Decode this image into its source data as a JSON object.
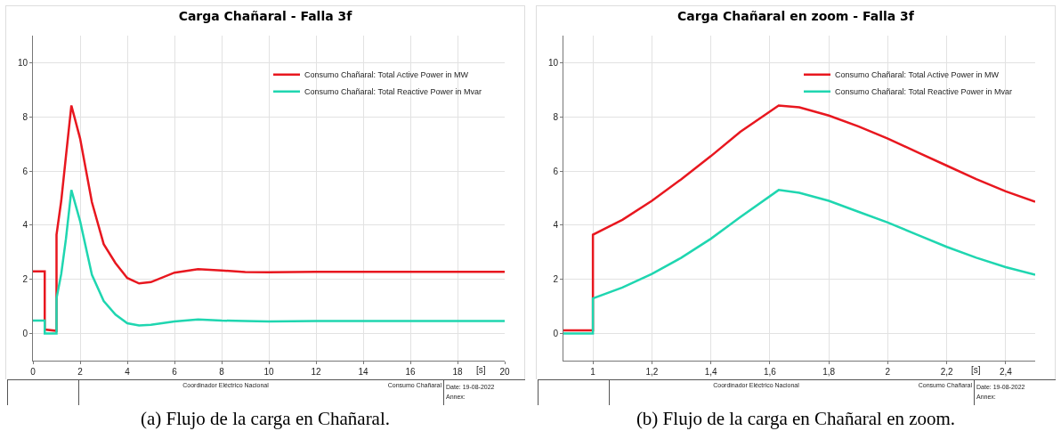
{
  "chart_data": [
    {
      "type": "line",
      "title": "Carga Chañaral - Falla 3f",
      "xlabel": "[s]",
      "legend": "top right",
      "grid": true,
      "marker": "none",
      "line_style": "solid",
      "xlim": [
        0,
        20
      ],
      "xticks": [
        0,
        2,
        4,
        6,
        8,
        10,
        12,
        14,
        16,
        18,
        20
      ],
      "ylim": [
        -1,
        11
      ],
      "yticks": [
        0,
        2,
        4,
        6,
        8,
        10
      ],
      "series": [
        {
          "name": "Consumo Chañaral: Total Active Power in MW",
          "color": "#e8171f",
          "x": [
            0,
            0.5,
            0.5,
            1,
            1,
            1.2,
            1.4,
            1.63,
            2,
            2.5,
            3,
            3.5,
            4,
            4.5,
            5,
            6,
            7,
            8,
            9,
            10,
            12,
            14,
            16,
            18,
            20
          ],
          "values": [
            2.3,
            2.3,
            0.15,
            0.1,
            3.65,
            4.9,
            6.55,
            8.42,
            7.2,
            4.85,
            3.3,
            2.6,
            2.05,
            1.85,
            1.9,
            2.25,
            2.38,
            2.33,
            2.27,
            2.26,
            2.28,
            2.28,
            2.28,
            2.28,
            2.28
          ]
        },
        {
          "name": "Consumo Chañaral: Total Reactive Power in Mvar",
          "color": "#1fd6b0",
          "x": [
            0,
            0.5,
            0.5,
            1,
            1,
            1.2,
            1.4,
            1.63,
            2,
            2.5,
            3,
            3.5,
            4,
            4.5,
            5,
            6,
            7,
            8,
            9,
            10,
            12,
            14,
            16,
            18,
            20
          ],
          "values": [
            0.48,
            0.48,
            0,
            0,
            1.3,
            2.2,
            3.5,
            5.3,
            4.15,
            2.17,
            1.2,
            0.7,
            0.38,
            0.3,
            0.32,
            0.45,
            0.52,
            0.48,
            0.46,
            0.45,
            0.46,
            0.46,
            0.46,
            0.46,
            0.46
          ]
        }
      ],
      "annotations": [
        "Coordinador Eléctrico Nacional",
        "Consumo Chañaral",
        "Date: 19-08-2022",
        "Annex:",
        "(a) Flujo de la carga en Chañaral."
      ]
    },
    {
      "type": "line",
      "title": "Carga Chañaral en zoom - Falla 3f",
      "xlabel": "[s]",
      "legend": "top right",
      "grid": true,
      "marker": "none",
      "line_style": "solid",
      "xlim": [
        0.9,
        2.5
      ],
      "xticks": [
        {
          "value": 1,
          "label": "1"
        },
        {
          "value": 1.2,
          "label": "1,2"
        },
        {
          "value": 1.4,
          "label": "1,4"
        },
        {
          "value": 1.6,
          "label": "1,6"
        },
        {
          "value": 1.8,
          "label": "1,8"
        },
        {
          "value": 2,
          "label": "2"
        },
        {
          "value": 2.2,
          "label": "2,2"
        },
        {
          "value": 2.4,
          "label": "2,4"
        }
      ],
      "ylim": [
        -1,
        11
      ],
      "yticks": [
        0,
        2,
        4,
        6,
        8,
        10
      ],
      "series": [
        {
          "name": "Consumo Chañaral: Total Active Power in MW",
          "color": "#e8171f",
          "x": [
            0.9,
            1,
            1,
            1.1,
            1.2,
            1.3,
            1.4,
            1.5,
            1.63,
            1.7,
            1.8,
            1.9,
            2,
            2.1,
            2.2,
            2.3,
            2.4,
            2.5
          ],
          "values": [
            0.12,
            0.12,
            3.65,
            4.2,
            4.9,
            5.7,
            6.55,
            7.45,
            8.42,
            8.35,
            8.05,
            7.65,
            7.2,
            6.7,
            6.2,
            5.7,
            5.25,
            4.87
          ]
        },
        {
          "name": "Consumo Chañaral: Total Reactive Power in Mvar",
          "color": "#1fd6b0",
          "x": [
            0.9,
            1,
            1,
            1.1,
            1.2,
            1.3,
            1.4,
            1.5,
            1.63,
            1.7,
            1.8,
            1.9,
            2,
            2.1,
            2.2,
            2.3,
            2.4,
            2.5
          ],
          "values": [
            0,
            0,
            1.3,
            1.7,
            2.2,
            2.8,
            3.5,
            4.3,
            5.3,
            5.2,
            4.9,
            4.5,
            4.1,
            3.65,
            3.2,
            2.8,
            2.45,
            2.17
          ]
        }
      ],
      "annotations": [
        "Coordinador Eléctrico Nacional",
        "Consumo Chañaral",
        "Date: 19-08-2022",
        "Annex:",
        "(b) Flujo de la carga en Chañaral en zoom."
      ]
    }
  ]
}
